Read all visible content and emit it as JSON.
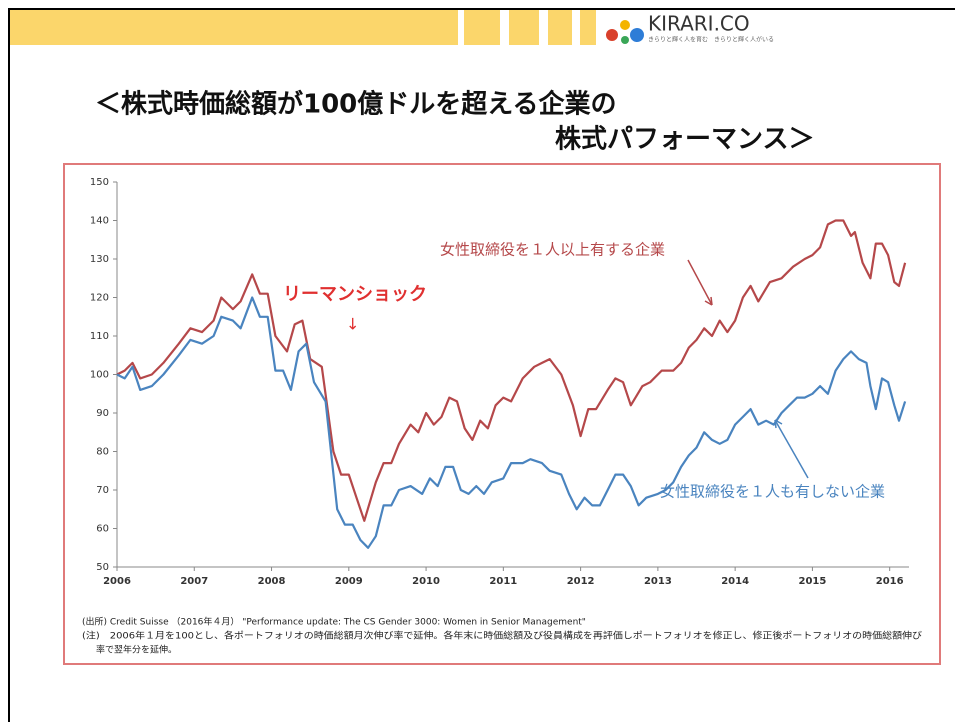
{
  "header": {
    "logo": "KIRARI.CO",
    "tagline": "きらりと輝く人を育む　きらりと輝く人がいる"
  },
  "chart_data": {
    "type": "line",
    "title": [
      "＜株式時価総額が100億ドルを超える企業の",
      "株式パフォーマンス＞"
    ],
    "annotation": {
      "text": "リーマンショック",
      "arrow": "↓"
    },
    "xlim": [
      2006,
      2016.25
    ],
    "xticks": [
      2006,
      2007,
      2008,
      2009,
      2010,
      2011,
      2012,
      2013,
      2014,
      2015,
      2016
    ],
    "ylim": [
      50,
      150
    ],
    "yticks": [
      50,
      60,
      70,
      80,
      90,
      100,
      110,
      120,
      130,
      140,
      150
    ],
    "series": [
      {
        "name": "女性取締役を１人以上有する企業",
        "color": "#b5484a",
        "x": [
          2006.0,
          2006.1,
          2006.2,
          2006.3,
          2006.45,
          2006.6,
          2006.8,
          2006.95,
          2007.1,
          2007.25,
          2007.35,
          2007.5,
          2007.6,
          2007.75,
          2007.85,
          2007.95,
          2008.05,
          2008.2,
          2008.3,
          2008.4,
          2008.5,
          2008.65,
          2008.8,
          2008.9,
          2009.0,
          2009.1,
          2009.2,
          2009.35,
          2009.45,
          2009.55,
          2009.65,
          2009.8,
          2009.9,
          2010.0,
          2010.1,
          2010.2,
          2010.3,
          2010.4,
          2010.5,
          2010.6,
          2010.7,
          2010.8,
          2010.9,
          2011.0,
          2011.1,
          2011.25,
          2011.4,
          2011.5,
          2011.6,
          2011.75,
          2011.9,
          2012.0,
          2012.1,
          2012.2,
          2012.35,
          2012.45,
          2012.55,
          2012.65,
          2012.8,
          2012.9,
          2013.05,
          2013.2,
          2013.3,
          2013.4,
          2013.5,
          2013.6,
          2013.7,
          2013.8,
          2013.9,
          2014.0,
          2014.1,
          2014.2,
          2014.3,
          2014.45,
          2014.6,
          2014.75,
          2014.9,
          2015.0,
          2015.1,
          2015.2,
          2015.3,
          2015.4,
          2015.5,
          2015.55,
          2015.65,
          2015.75,
          2015.82,
          2015.9,
          2015.98,
          2016.06,
          2016.12,
          2016.2
        ],
        "values": [
          100,
          101,
          103,
          99,
          100,
          103,
          108,
          112,
          111,
          114,
          120,
          117,
          119,
          126,
          121,
          121,
          110,
          106,
          113,
          114,
          104,
          102,
          80,
          74,
          74,
          68,
          62,
          72,
          77,
          77,
          82,
          87,
          85,
          90,
          87,
          89,
          94,
          93,
          86,
          83,
          88,
          86,
          92,
          94,
          93,
          99,
          102,
          103,
          104,
          100,
          92,
          84,
          91,
          91,
          96,
          99,
          98,
          92,
          97,
          98,
          101,
          101,
          103,
          107,
          109,
          112,
          110,
          114,
          111,
          114,
          120,
          123,
          119,
          124,
          125,
          128,
          130,
          131,
          133,
          139,
          140,
          140,
          136,
          137,
          129,
          125,
          134,
          134,
          131,
          124,
          123,
          129
        ]
      },
      {
        "name": "女性取締役を１人も有しない企業",
        "color": "#4a84bf",
        "x": [
          2006.0,
          2006.1,
          2006.2,
          2006.3,
          2006.45,
          2006.6,
          2006.8,
          2006.95,
          2007.1,
          2007.25,
          2007.35,
          2007.5,
          2007.6,
          2007.75,
          2007.85,
          2007.95,
          2008.05,
          2008.15,
          2008.25,
          2008.35,
          2008.45,
          2008.55,
          2008.7,
          2008.85,
          2008.95,
          2009.05,
          2009.15,
          2009.25,
          2009.35,
          2009.45,
          2009.55,
          2009.65,
          2009.8,
          2009.95,
          2010.05,
          2010.15,
          2010.25,
          2010.35,
          2010.45,
          2010.55,
          2010.65,
          2010.75,
          2010.85,
          2011.0,
          2011.1,
          2011.25,
          2011.35,
          2011.5,
          2011.6,
          2011.75,
          2011.85,
          2011.95,
          2012.05,
          2012.15,
          2012.25,
          2012.35,
          2012.45,
          2012.55,
          2012.65,
          2012.75,
          2012.85,
          2013.0,
          2013.1,
          2013.2,
          2013.3,
          2013.4,
          2013.5,
          2013.6,
          2013.7,
          2013.8,
          2013.9,
          2014.0,
          2014.1,
          2014.2,
          2014.3,
          2014.4,
          2014.5,
          2014.6,
          2014.7,
          2014.8,
          2014.9,
          2015.0,
          2015.1,
          2015.2,
          2015.3,
          2015.4,
          2015.5,
          2015.6,
          2015.7,
          2015.75,
          2015.82,
          2015.9,
          2015.98,
          2016.06,
          2016.12,
          2016.2
        ],
        "values": [
          100,
          99,
          102,
          96,
          97,
          100,
          105,
          109,
          108,
          110,
          115,
          114,
          112,
          120,
          115,
          115,
          101,
          101,
          96,
          106,
          108,
          98,
          93,
          65,
          61,
          61,
          57,
          55,
          58,
          66,
          66,
          70,
          71,
          69,
          73,
          71,
          76,
          76,
          70,
          69,
          71,
          69,
          72,
          73,
          77,
          77,
          78,
          77,
          75,
          74,
          69,
          65,
          68,
          66,
          66,
          70,
          74,
          74,
          71,
          66,
          68,
          69,
          70,
          72,
          76,
          79,
          81,
          85,
          83,
          82,
          83,
          87,
          89,
          91,
          87,
          88,
          87,
          90,
          92,
          94,
          94,
          95,
          97,
          95,
          101,
          104,
          106,
          104,
          103,
          97,
          91,
          99,
          98,
          92,
          88,
          93
        ]
      }
    ],
    "notes": [
      "(出所) Credit Suisse （2016年４月） \"Performance update: The CS Gender 3000: Women in Senior Management\"",
      "(注)　2006年１月を100とし、各ポートフォリオの時価総額月次伸び率で延伸。各年末に時価総額及び役員構成を再評価しポートフォリオを修正し、修正後ポートフォリオの時価総額伸び",
      "率で翌年分を延伸。"
    ]
  }
}
